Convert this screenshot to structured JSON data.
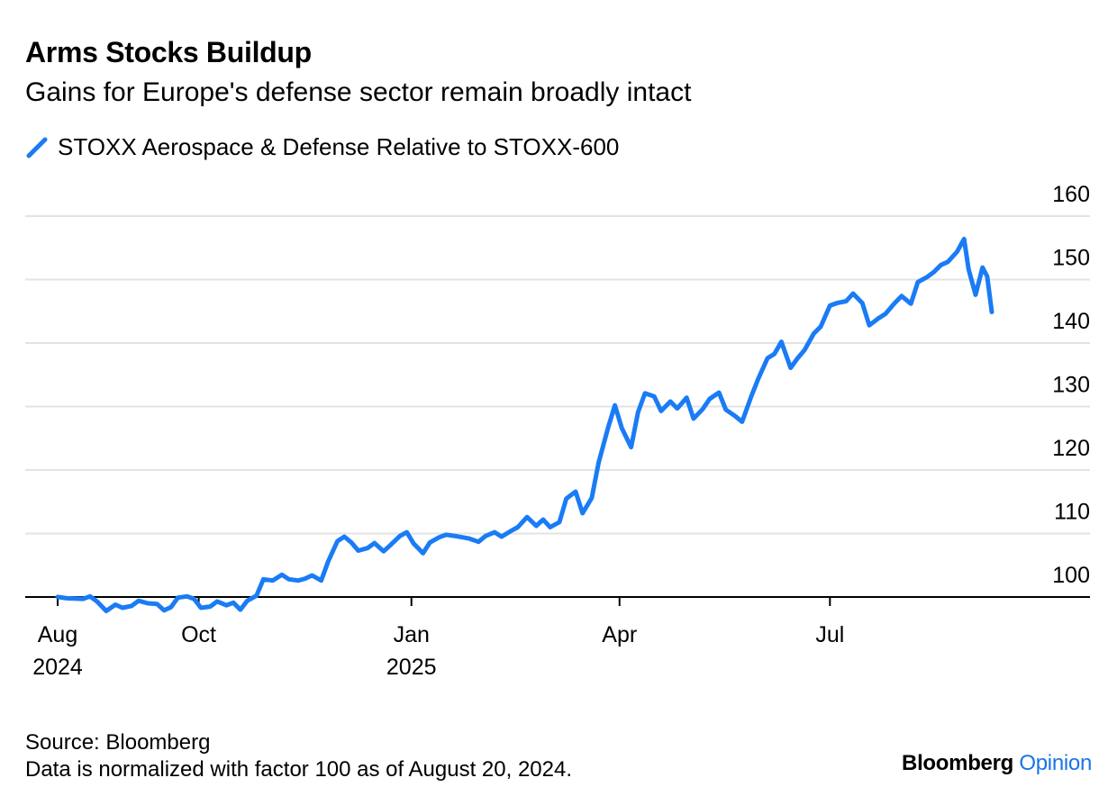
{
  "title": "Arms Stocks Buildup",
  "subtitle": "Gains for Europe's defense sector remain broadly intact",
  "legend": {
    "label": "STOXX Aerospace & Defense Relative to STOXX-600",
    "color": "#1a7cf5"
  },
  "source": "Source: Bloomberg",
  "note": "Data is normalized with factor 100 as of August 20, 2024.",
  "brand": {
    "name": "Bloomberg",
    "accent": "Opinion",
    "accent_color": "#1a73e8"
  },
  "chart_data": {
    "type": "line",
    "title": "Arms Stocks Buildup",
    "xlabel": "",
    "ylabel": "",
    "ylim": [
      96,
      162
    ],
    "xlim": [
      "2024-08-01",
      "2025-09-09"
    ],
    "yticks": [
      100,
      110,
      120,
      130,
      140,
      150,
      160
    ],
    "xticks": [
      {
        "date": "2024-08-01",
        "label": "Aug",
        "sublabel": "2024"
      },
      {
        "date": "2024-10-01",
        "label": "Oct",
        "sublabel": ""
      },
      {
        "date": "2025-01-01",
        "label": "Jan",
        "sublabel": "2025"
      },
      {
        "date": "2025-04-01",
        "label": "Apr",
        "sublabel": ""
      },
      {
        "date": "2025-07-01",
        "label": "Jul",
        "sublabel": ""
      }
    ],
    "grid": true,
    "legend_position": "top-left",
    "series": [
      {
        "name": "STOXX Aerospace & Defense Relative to STOXX-600",
        "color": "#1a7cf5",
        "points": [
          [
            "2024-08-01",
            100.0
          ],
          [
            "2024-08-05",
            99.8
          ],
          [
            "2024-08-12",
            99.7
          ],
          [
            "2024-08-15",
            100.1
          ],
          [
            "2024-08-18",
            99.3
          ],
          [
            "2024-08-22",
            97.8
          ],
          [
            "2024-08-26",
            98.8
          ],
          [
            "2024-08-29",
            98.3
          ],
          [
            "2024-09-02",
            98.6
          ],
          [
            "2024-09-05",
            99.4
          ],
          [
            "2024-09-09",
            99.0
          ],
          [
            "2024-09-13",
            98.9
          ],
          [
            "2024-09-16",
            97.9
          ],
          [
            "2024-09-19",
            98.4
          ],
          [
            "2024-09-22",
            99.9
          ],
          [
            "2024-09-26",
            100.1
          ],
          [
            "2024-09-29",
            99.7
          ],
          [
            "2024-10-02",
            98.3
          ],
          [
            "2024-10-06",
            98.5
          ],
          [
            "2024-10-09",
            99.3
          ],
          [
            "2024-10-13",
            98.7
          ],
          [
            "2024-10-16",
            99.1
          ],
          [
            "2024-10-19",
            98.0
          ],
          [
            "2024-10-22",
            99.4
          ],
          [
            "2024-10-26",
            100.2
          ],
          [
            "2024-10-29",
            102.8
          ],
          [
            "2024-11-02",
            102.6
          ],
          [
            "2024-11-06",
            103.5
          ],
          [
            "2024-11-09",
            102.8
          ],
          [
            "2024-11-13",
            102.6
          ],
          [
            "2024-11-16",
            102.9
          ],
          [
            "2024-11-19",
            103.4
          ],
          [
            "2024-11-23",
            102.6
          ],
          [
            "2024-11-26",
            105.6
          ],
          [
            "2024-11-30",
            108.8
          ],
          [
            "2024-12-03",
            109.5
          ],
          [
            "2024-12-06",
            108.6
          ],
          [
            "2024-12-09",
            107.3
          ],
          [
            "2024-12-13",
            107.7
          ],
          [
            "2024-12-16",
            108.5
          ],
          [
            "2024-12-20",
            107.2
          ],
          [
            "2024-12-23",
            108.2
          ],
          [
            "2024-12-27",
            109.6
          ],
          [
            "2024-12-30",
            110.2
          ],
          [
            "2025-01-02",
            108.4
          ],
          [
            "2025-01-06",
            106.9
          ],
          [
            "2025-01-09",
            108.6
          ],
          [
            "2025-01-13",
            109.4
          ],
          [
            "2025-01-16",
            109.8
          ],
          [
            "2025-01-20",
            109.6
          ],
          [
            "2025-01-23",
            109.4
          ],
          [
            "2025-01-26",
            109.2
          ],
          [
            "2025-01-30",
            108.7
          ],
          [
            "2025-02-02",
            109.6
          ],
          [
            "2025-02-06",
            110.2
          ],
          [
            "2025-02-09",
            109.5
          ],
          [
            "2025-02-13",
            110.4
          ],
          [
            "2025-02-16",
            111.0
          ],
          [
            "2025-02-20",
            112.6
          ],
          [
            "2025-02-24",
            111.2
          ],
          [
            "2025-02-27",
            112.2
          ],
          [
            "2025-03-02",
            111.0
          ],
          [
            "2025-03-06",
            111.8
          ],
          [
            "2025-03-09",
            115.5
          ],
          [
            "2025-03-13",
            116.6
          ],
          [
            "2025-03-16",
            113.2
          ],
          [
            "2025-03-20",
            115.6
          ],
          [
            "2025-03-23",
            121.2
          ],
          [
            "2025-03-27",
            126.6
          ],
          [
            "2025-03-30",
            130.2
          ],
          [
            "2025-04-02",
            126.6
          ],
          [
            "2025-04-06",
            123.6
          ],
          [
            "2025-04-09",
            129.1
          ],
          [
            "2025-04-12",
            132.1
          ],
          [
            "2025-04-16",
            131.6
          ],
          [
            "2025-04-19",
            129.3
          ],
          [
            "2025-04-23",
            130.8
          ],
          [
            "2025-04-26",
            129.7
          ],
          [
            "2025-04-30",
            131.4
          ],
          [
            "2025-05-03",
            128.1
          ],
          [
            "2025-05-07",
            129.6
          ],
          [
            "2025-05-10",
            131.2
          ],
          [
            "2025-05-14",
            132.2
          ],
          [
            "2025-05-17",
            129.5
          ],
          [
            "2025-05-21",
            128.5
          ],
          [
            "2025-05-24",
            127.6
          ],
          [
            "2025-05-28",
            131.6
          ],
          [
            "2025-05-31",
            134.4
          ],
          [
            "2025-06-04",
            137.6
          ],
          [
            "2025-06-07",
            138.3
          ],
          [
            "2025-06-10",
            140.2
          ],
          [
            "2025-06-14",
            136.1
          ],
          [
            "2025-06-17",
            137.6
          ],
          [
            "2025-06-20",
            138.9
          ],
          [
            "2025-06-24",
            141.5
          ],
          [
            "2025-06-27",
            142.6
          ],
          [
            "2025-07-01",
            145.9
          ],
          [
            "2025-07-04",
            146.3
          ],
          [
            "2025-07-08",
            146.6
          ],
          [
            "2025-07-11",
            147.8
          ],
          [
            "2025-07-15",
            146.3
          ],
          [
            "2025-07-18",
            142.8
          ],
          [
            "2025-07-22",
            143.9
          ],
          [
            "2025-07-25",
            144.6
          ],
          [
            "2025-07-29",
            146.3
          ],
          [
            "2025-08-01",
            147.4
          ],
          [
            "2025-08-05",
            146.2
          ],
          [
            "2025-08-08",
            149.6
          ],
          [
            "2025-08-12",
            150.4
          ],
          [
            "2025-08-15",
            151.2
          ],
          [
            "2025-08-18",
            152.3
          ],
          [
            "2025-08-21",
            152.8
          ],
          [
            "2025-08-25",
            154.4
          ],
          [
            "2025-08-28",
            156.4
          ],
          [
            "2025-08-30",
            151.6
          ],
          [
            "2025-09-02",
            147.6
          ],
          [
            "2025-09-05",
            151.9
          ],
          [
            "2025-09-07",
            150.5
          ],
          [
            "2025-09-09",
            144.9
          ]
        ]
      }
    ]
  }
}
